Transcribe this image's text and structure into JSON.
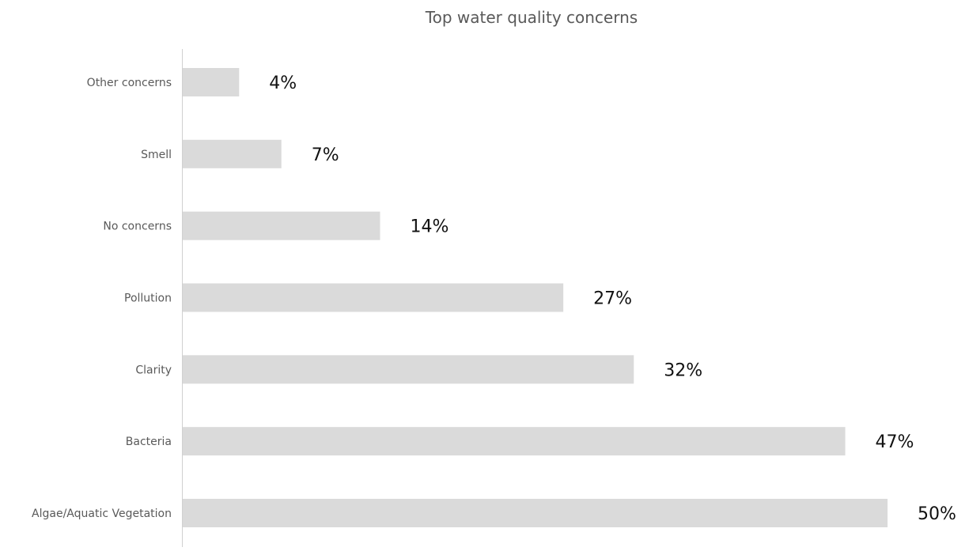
{
  "chart_data": {
    "type": "bar",
    "orientation": "horizontal",
    "title": "Top water quality concerns",
    "categories": [
      "Other concerns",
      "Smell",
      "No concerns",
      "Pollution",
      "Clarity",
      "Bacteria",
      "Algae/Aquatic Vegetation"
    ],
    "values": [
      4,
      7,
      14,
      27,
      32,
      47,
      50
    ],
    "value_labels": [
      "4%",
      "7%",
      "14%",
      "27%",
      "32%",
      "47%",
      "50%"
    ],
    "unit": "%",
    "xlim": [
      0,
      50
    ],
    "xlabel": "",
    "ylabel": "",
    "grid": false,
    "legend": "none",
    "bar_color": "#dadada",
    "axis_color": "#d0d0d0"
  }
}
